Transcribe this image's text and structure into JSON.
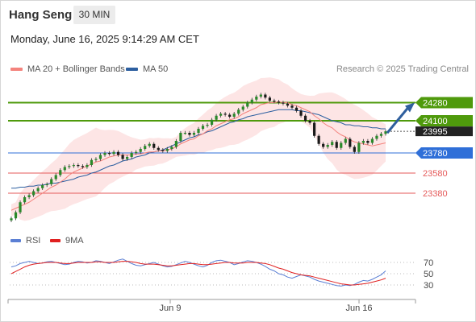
{
  "header": {
    "instrument": "Hang Seng",
    "timeframe": "30 MIN"
  },
  "datetime": "Monday, June 16, 2025 9:14:29 AM CET",
  "legend": {
    "ma_bb": {
      "label": "MA 20 + Bollinger Bands",
      "color": "#f4837d"
    },
    "ma50": {
      "label": "MA 50",
      "color": "#2d5fa0"
    }
  },
  "credit": "Research © 2025 Trading Central",
  "rsi_legend": {
    "rsi": {
      "label": "RSI",
      "color": "#5b7fd4"
    },
    "ma9": {
      "label": "9MA",
      "color": "#e02020"
    }
  },
  "chart_data": [
    {
      "type": "candlestick",
      "ylim": [
        23100,
        24500
      ],
      "x_tick_labels": [
        "Jun 9",
        "Jun 16"
      ],
      "levels": [
        {
          "value": 24280,
          "label": "24280",
          "kind": "resistance",
          "color": "#4f9a0c"
        },
        {
          "value": 24100,
          "label": "24100",
          "kind": "resistance",
          "color": "#4f9a0c"
        },
        {
          "value": 23995,
          "label": "23995",
          "kind": "last",
          "color": "#222222"
        },
        {
          "value": 23780,
          "label": "23780",
          "kind": "pivot",
          "color": "#2f6fd8"
        },
        {
          "value": 23580,
          "label": "23580",
          "kind": "support",
          "color": "#e55a5a"
        },
        {
          "value": 23380,
          "label": "23380",
          "kind": "support",
          "color": "#e55a5a"
        }
      ],
      "close": [
        23130,
        23190,
        23290,
        23340,
        23360,
        23400,
        23430,
        23460,
        23470,
        23520,
        23560,
        23610,
        23640,
        23650,
        23660,
        23650,
        23640,
        23660,
        23710,
        23720,
        23760,
        23780,
        23770,
        23790,
        23760,
        23720,
        23740,
        23780,
        23790,
        23820,
        23850,
        23870,
        23830,
        23810,
        23800,
        23820,
        23840,
        23900,
        23980,
        23980,
        23960,
        23980,
        24020,
        24050,
        24060,
        24110,
        24150,
        24170,
        24160,
        24140,
        24170,
        24210,
        24240,
        24280,
        24310,
        24340,
        24360,
        24330,
        24300,
        24290,
        24280,
        24270,
        24250,
        24230,
        24200,
        24150,
        24100,
        24080,
        23950,
        23870,
        23840,
        23860,
        23890,
        23830,
        23880,
        23920,
        23840,
        23790,
        23880,
        23900,
        23880,
        23920,
        23950,
        23970,
        23995
      ],
      "ma20": [
        23210,
        23230,
        23250,
        23270,
        23290,
        23320,
        23350,
        23380,
        23410,
        23440,
        23460,
        23490,
        23520,
        23560,
        23590,
        23610,
        23630,
        23650,
        23670,
        23690,
        23700,
        23720,
        23740,
        23750,
        23760,
        23760,
        23760,
        23760,
        23770,
        23770,
        23780,
        23790,
        23790,
        23800,
        23800,
        23810,
        23820,
        23840,
        23870,
        23890,
        23910,
        23920,
        23950,
        23970,
        24000,
        24020,
        24050,
        24070,
        24090,
        24110,
        24120,
        24140,
        24170,
        24190,
        24210,
        24230,
        24260,
        24270,
        24280,
        24280,
        24290,
        24280,
        24280,
        24260,
        24250,
        24230,
        24210,
        24190,
        24150,
        24120,
        24080,
        24050,
        24030,
        23990,
        23960,
        23940,
        23910,
        23890,
        23880,
        23870,
        23860,
        23850,
        23860,
        23870,
        23880
      ],
      "ma50": [
        23430,
        23430,
        23440,
        23440,
        23450,
        23450,
        23460,
        23460,
        23470,
        23480,
        23480,
        23490,
        23500,
        23510,
        23520,
        23540,
        23550,
        23560,
        23580,
        23590,
        23610,
        23630,
        23650,
        23660,
        23680,
        23700,
        23710,
        23720,
        23740,
        23750,
        23760,
        23780,
        23790,
        23800,
        23810,
        23830,
        23850,
        23870,
        23890,
        23910,
        23930,
        23940,
        23960,
        23970,
        23990,
        24000,
        24020,
        24040,
        24060,
        24080,
        24090,
        24110,
        24120,
        24140,
        24150,
        24160,
        24170,
        24180,
        24190,
        24200,
        24210,
        24210,
        24210,
        24210,
        24200,
        24200,
        24190,
        24180,
        24170,
        24160,
        24140,
        24120,
        24100,
        24090,
        24080,
        24060,
        24060,
        24050,
        24050,
        24040,
        24040,
        24030,
        24030,
        24020,
        24020
      ],
      "projection": {
        "from": 23995,
        "to": 24280
      }
    },
    {
      "type": "line",
      "name": "RSI",
      "ylim": [
        10,
        90
      ],
      "y_tick_labels": [
        70,
        50,
        30
      ],
      "rsi": [
        62,
        64,
        68,
        70,
        72,
        70,
        68,
        69,
        71,
        72,
        70,
        68,
        66,
        67,
        70,
        72,
        71,
        69,
        70,
        73,
        72,
        70,
        68,
        71,
        74,
        76,
        72,
        68,
        65,
        64,
        66,
        68,
        70,
        67,
        64,
        62,
        63,
        66,
        69,
        72,
        70,
        67,
        64,
        62,
        65,
        70,
        73,
        74,
        72,
        70,
        66,
        68,
        71,
        73,
        72,
        70,
        67,
        63,
        58,
        55,
        50,
        48,
        44,
        42,
        45,
        48,
        46,
        44,
        40,
        37,
        35,
        33,
        31,
        29,
        28,
        30,
        29,
        31,
        35,
        38,
        37,
        40,
        44,
        48,
        55
      ],
      "ma9": [
        50,
        54,
        58,
        62,
        65,
        67,
        68,
        69,
        70,
        70,
        70,
        69,
        68,
        68,
        69,
        70,
        70,
        70,
        70,
        71,
        71,
        70,
        70,
        70,
        71,
        72,
        72,
        71,
        70,
        68,
        67,
        67,
        67,
        66,
        65,
        64,
        64,
        65,
        66,
        67,
        68,
        68,
        67,
        66,
        66,
        67,
        68,
        69,
        70,
        70,
        69,
        69,
        69,
        70,
        70,
        70,
        69,
        68,
        66,
        63,
        60,
        58,
        55,
        52,
        50,
        48,
        47,
        46,
        44,
        42,
        40,
        38,
        36,
        34,
        32,
        31,
        30,
        30,
        31,
        32,
        33,
        35,
        37,
        39,
        42
      ]
    }
  ]
}
